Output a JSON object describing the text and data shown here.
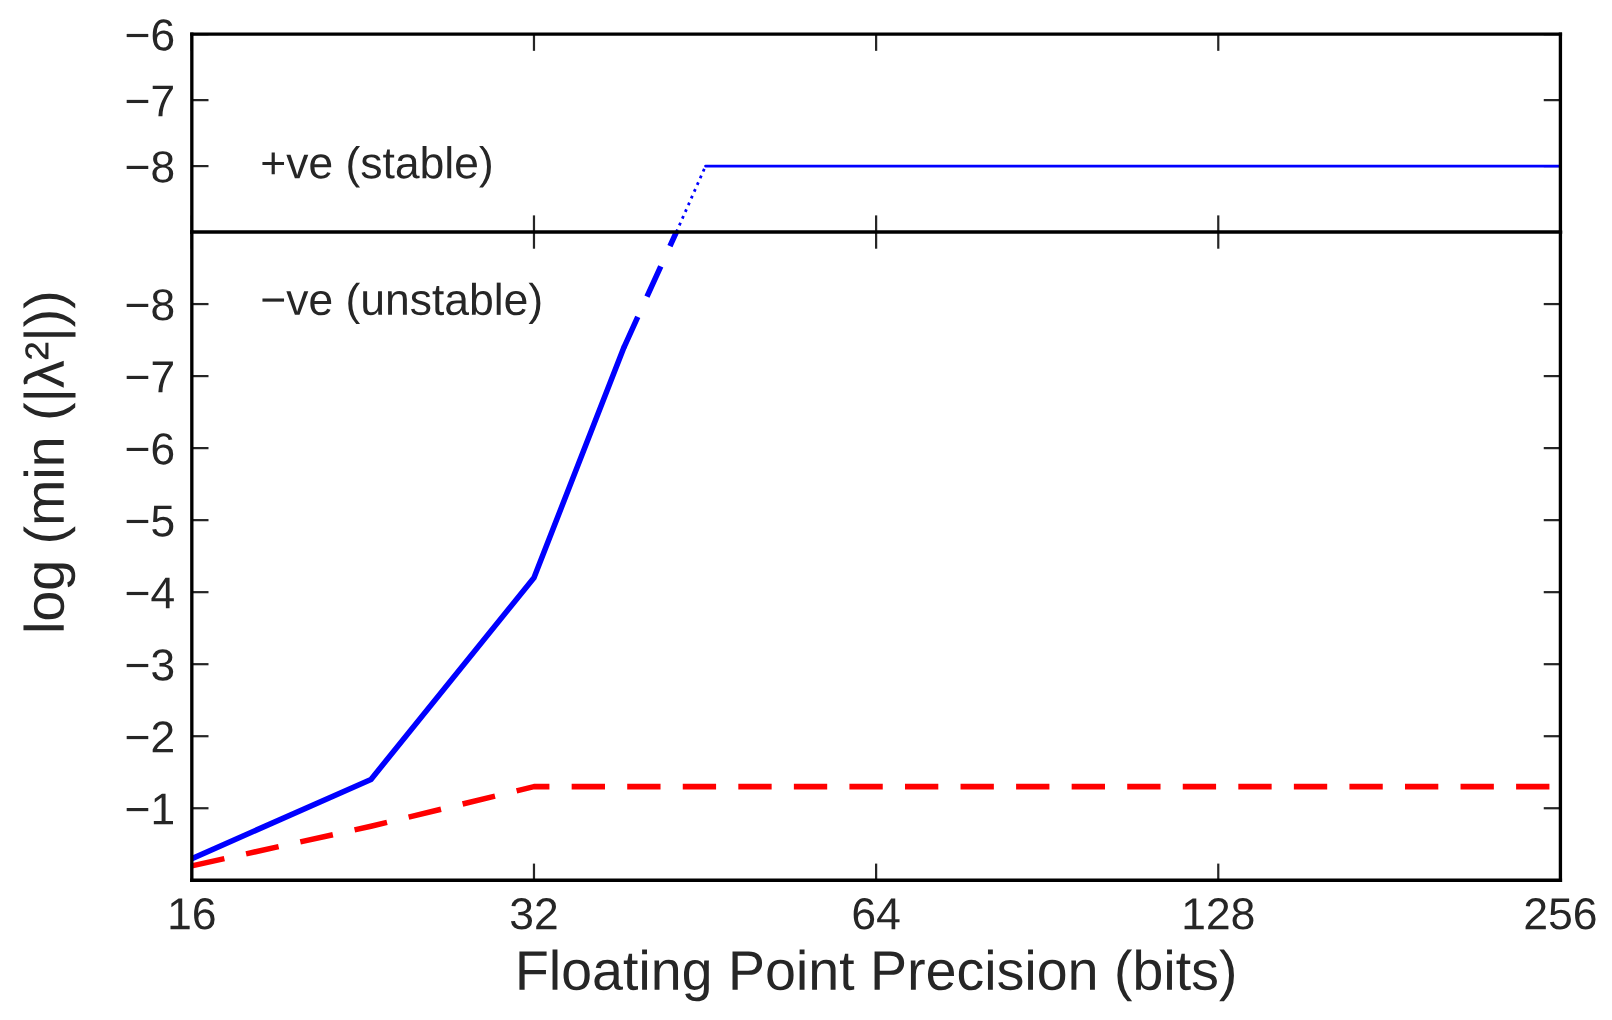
{
  "chart_data": [
    {
      "type": "line",
      "xlim": [
        16,
        256
      ],
      "xticks": [
        16,
        32,
        64,
        128,
        256
      ],
      "ylim": [
        -9,
        -6
      ],
      "yticks": [
        -6,
        -7,
        -8
      ],
      "log": "x",
      "tick_labels": "y",
      "grid": false,
      "annotations": [
        "+ve (stable)"
      ],
      "series": [
        {
          "color": "#0000ff",
          "line_style": "dotted",
          "x": [
            42.7,
            45.3
          ],
          "values": [
            -9,
            -8
          ]
        },
        {
          "color": "#0000ff",
          "line_style": "solid",
          "x": [
            45.3,
            256
          ],
          "values": [
            -8,
            -8
          ]
        }
      ]
    },
    {
      "type": "line",
      "xlim": [
        16,
        256
      ],
      "xticks": [
        16,
        32,
        64,
        128,
        256
      ],
      "ylim": [
        0,
        -9
      ],
      "yticks": [
        -1,
        -2,
        -3,
        -4,
        -5,
        -6,
        -7,
        -8
      ],
      "log": "x",
      "grid": false,
      "xlabel": "Floating Point Precision (bits)",
      "ylabel": "log (min (|λ²|))",
      "annotations": [
        "−ve (unstable)"
      ],
      "series": [
        {
          "color": "#0000ff",
          "line_style": "solid",
          "x": [
            16,
            23,
            32,
            38.4
          ],
          "values": [
            -0.3,
            -1.4,
            -4.2,
            -7.4
          ]
        },
        {
          "color": "#0000ff",
          "line_style": "dashed",
          "x": [
            38.4,
            42.7
          ],
          "values": [
            -7.4,
            -9
          ]
        },
        {
          "color": "#ff0000",
          "line_style": "dashed",
          "x": [
            16,
            23,
            32,
            256
          ],
          "values": [
            -0.2,
            -0.75,
            -1.3,
            -1.3
          ]
        }
      ]
    }
  ]
}
